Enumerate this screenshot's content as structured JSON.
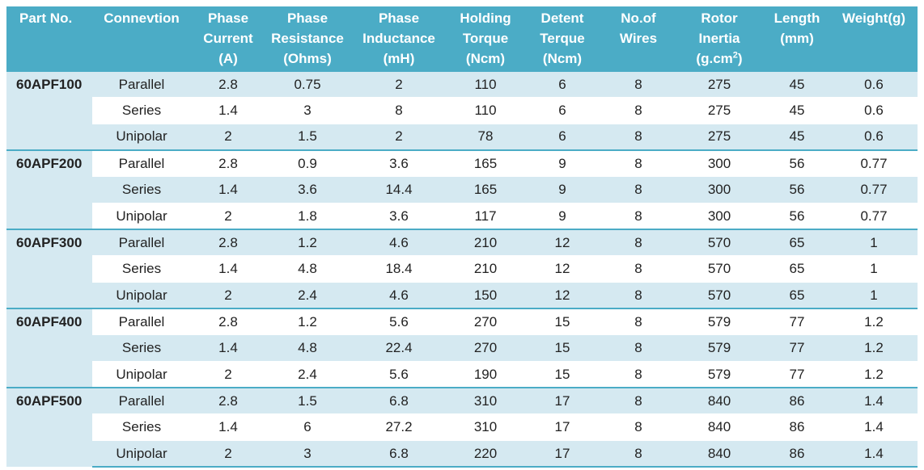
{
  "table": {
    "headers": [
      {
        "lines": [
          "Part No."
        ]
      },
      {
        "lines": [
          "Connevtion"
        ]
      },
      {
        "lines": [
          "Phase",
          "Current",
          "(A)"
        ]
      },
      {
        "lines": [
          "Phase",
          "Resistance",
          "(Ohms)"
        ]
      },
      {
        "lines": [
          "Phase",
          "Inductance",
          "(mH)"
        ]
      },
      {
        "lines": [
          "Holding",
          "Torque",
          "(Ncm)"
        ]
      },
      {
        "lines": [
          "Detent",
          "Terque",
          "(Ncm)"
        ]
      },
      {
        "lines": [
          "No.of",
          "Wires"
        ]
      },
      {
        "lines": [
          "Rotor",
          "Inertia",
          "(g.cm",
          ")"
        ],
        "sup": "2"
      },
      {
        "lines": [
          "Length",
          "(mm)"
        ]
      },
      {
        "lines": [
          "Weight(g)"
        ]
      }
    ],
    "groups": [
      {
        "part": "60APF100",
        "rows": [
          [
            "Parallel",
            "2.8",
            "0.75",
            "2",
            "110",
            "6",
            "8",
            "275",
            "45",
            "0.6"
          ],
          [
            "Series",
            "1.4",
            "3",
            "8",
            "110",
            "6",
            "8",
            "275",
            "45",
            "0.6"
          ],
          [
            "Unipolar",
            "2",
            "1.5",
            "2",
            "78",
            "6",
            "8",
            "275",
            "45",
            "0.6"
          ]
        ]
      },
      {
        "part": "60APF200",
        "rows": [
          [
            "Parallel",
            "2.8",
            "0.9",
            "3.6",
            "165",
            "9",
            "8",
            "300",
            "56",
            "0.77"
          ],
          [
            "Series",
            "1.4",
            "3.6",
            "14.4",
            "165",
            "9",
            "8",
            "300",
            "56",
            "0.77"
          ],
          [
            "Unipolar",
            "2",
            "1.8",
            "3.6",
            "117",
            "9",
            "8",
            "300",
            "56",
            "0.77"
          ]
        ]
      },
      {
        "part": "60APF300",
        "rows": [
          [
            "Parallel",
            "2.8",
            "1.2",
            "4.6",
            "210",
            "12",
            "8",
            "570",
            "65",
            "1"
          ],
          [
            "Series",
            "1.4",
            "4.8",
            "18.4",
            "210",
            "12",
            "8",
            "570",
            "65",
            "1"
          ],
          [
            "Unipolar",
            "2",
            "2.4",
            "4.6",
            "150",
            "12",
            "8",
            "570",
            "65",
            "1"
          ]
        ]
      },
      {
        "part": "60APF400",
        "rows": [
          [
            "Parallel",
            "2.8",
            "1.2",
            "5.6",
            "270",
            "15",
            "8",
            "579",
            "77",
            "1.2"
          ],
          [
            "Series",
            "1.4",
            "4.8",
            "22.4",
            "270",
            "15",
            "8",
            "579",
            "77",
            "1.2"
          ],
          [
            "Unipolar",
            "2",
            "2.4",
            "5.6",
            "190",
            "15",
            "8",
            "579",
            "77",
            "1.2"
          ]
        ]
      },
      {
        "part": "60APF500",
        "rows": [
          [
            "Parallel",
            "2.8",
            "1.5",
            "6.8",
            "310",
            "17",
            "8",
            "840",
            "86",
            "1.4"
          ],
          [
            "Series",
            "1.4",
            "6",
            "27.2",
            "310",
            "17",
            "8",
            "840",
            "86",
            "1.4"
          ],
          [
            "Unipolar",
            "2",
            "3",
            "6.8",
            "220",
            "17",
            "8",
            "840",
            "86",
            "1.4"
          ]
        ]
      }
    ]
  },
  "colors": {
    "header": "#4bacc6",
    "band": "#d5e9f1",
    "white": "#ffffff"
  }
}
